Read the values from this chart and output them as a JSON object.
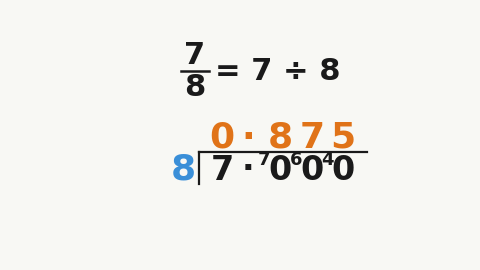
{
  "bg_color": "#f8f8f4",
  "black_color": "#1a1a1a",
  "orange_color": "#e07318",
  "blue_color": "#3a8fd8",
  "quotient": [
    "0",
    "·",
    "8",
    "7",
    "5"
  ],
  "divisor": "8",
  "dividend_main": [
    "7",
    "·",
    "0",
    "0",
    "0"
  ],
  "remainders": [
    "7",
    "6",
    "4"
  ]
}
